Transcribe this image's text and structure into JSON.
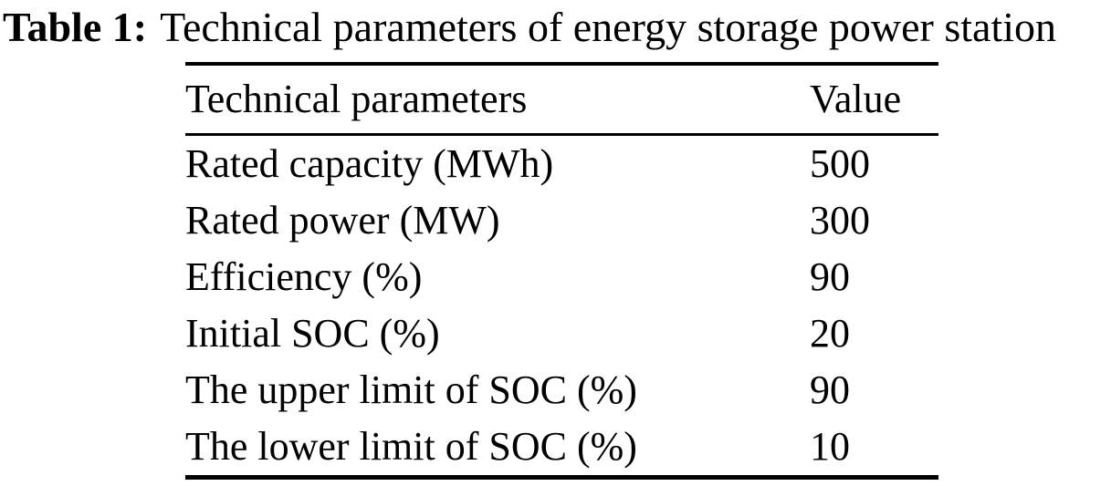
{
  "table": {
    "caption_label": "Table 1:",
    "caption_text": "Technical parameters of energy storage power station",
    "columns": [
      "Technical parameters",
      "Value"
    ],
    "rows": [
      {
        "parameter": "Rated capacity (MWh)",
        "value": "500"
      },
      {
        "parameter": "Rated power (MW)",
        "value": "300"
      },
      {
        "parameter": "Efficiency (%)",
        "value": "90"
      },
      {
        "parameter": "Initial SOC (%)",
        "value": "20"
      },
      {
        "parameter": "The upper limit of SOC (%)",
        "value": "90"
      },
      {
        "parameter": "The lower limit of SOC (%)",
        "value": "10"
      }
    ]
  },
  "chart_data": {
    "type": "table",
    "title": "Table 1: Technical parameters of energy storage power station",
    "columns": [
      "Technical parameters",
      "Value"
    ],
    "rows": [
      [
        "Rated capacity (MWh)",
        500
      ],
      [
        "Rated power (MW)",
        300
      ],
      [
        "Efficiency (%)",
        90
      ],
      [
        "Initial SOC (%)",
        20
      ],
      [
        "The upper limit of SOC (%)",
        90
      ],
      [
        "The lower limit of SOC (%)",
        10
      ]
    ]
  },
  "colors": {
    "text": "#000000",
    "background": "#ffffff"
  }
}
